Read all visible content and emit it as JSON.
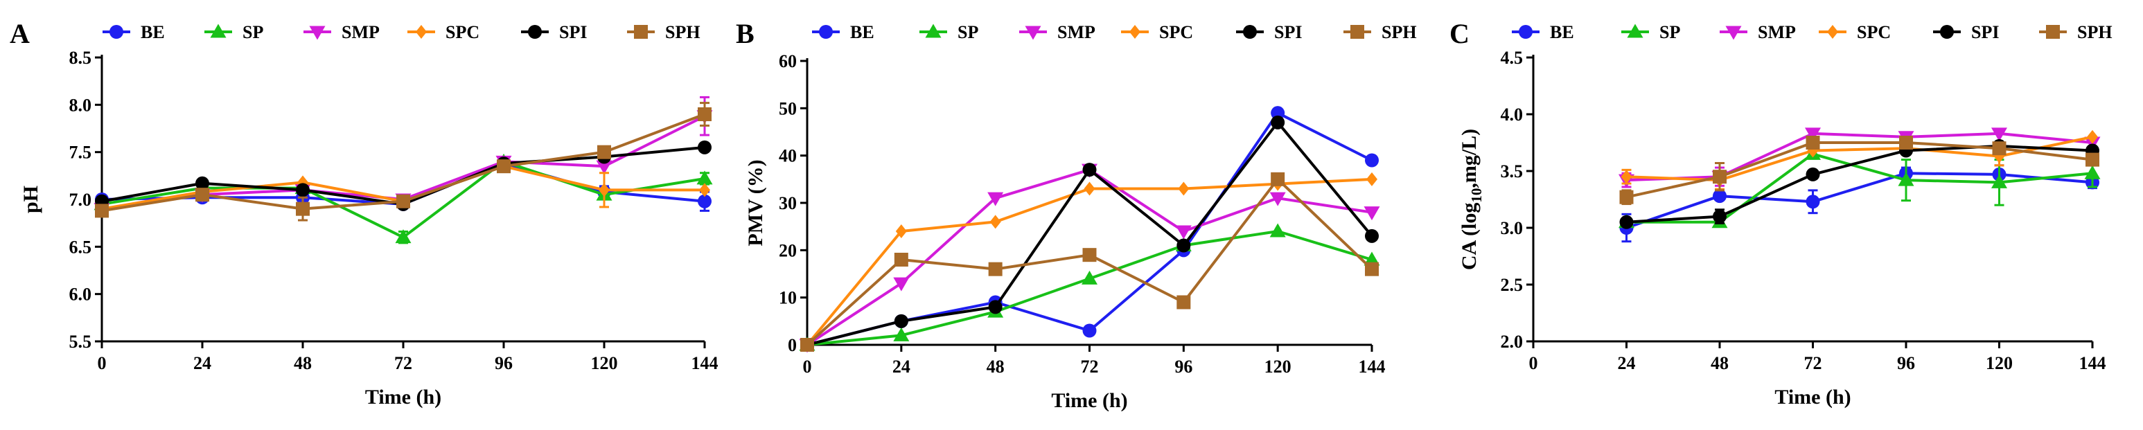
{
  "chart_data": [
    {
      "type": "line",
      "panel_letter": "A",
      "x": [
        0,
        24,
        48,
        72,
        96,
        120,
        144
      ],
      "xlabel": "Time (h)",
      "ylabel": "pH",
      "xlim": [
        0,
        144
      ],
      "ylim": [
        5.5,
        8.5
      ],
      "xticks": [
        0,
        24,
        48,
        72,
        96,
        120,
        144
      ],
      "yticks": [
        5.5,
        6.0,
        6.5,
        7.0,
        7.5,
        8.0,
        8.5
      ],
      "ytick_labels": [
        "5.5",
        "6.0",
        "6.5",
        "7.0",
        "7.5",
        "8.0",
        "8.5"
      ],
      "legend": [
        "BE",
        "SP",
        "SMP",
        "SPC",
        "SPI",
        "SPH"
      ],
      "series": [
        {
          "name": "BE",
          "values": [
            7.0,
            7.02,
            7.02,
            6.95,
            7.38,
            7.08,
            6.98
          ],
          "err": [
            0,
            0,
            0,
            0,
            0,
            0.06,
            0.1
          ]
        },
        {
          "name": "SP",
          "values": [
            6.95,
            7.12,
            7.12,
            6.6,
            7.4,
            7.05,
            7.22
          ],
          "err": [
            0,
            0,
            0,
            0.06,
            0,
            0,
            0.06
          ]
        },
        {
          "name": "SMP",
          "values": [
            6.9,
            7.05,
            7.1,
            7.0,
            7.4,
            7.35,
            7.88
          ],
          "err": [
            0,
            0,
            0,
            0,
            0,
            0,
            0.2
          ]
        },
        {
          "name": "SPC",
          "values": [
            6.9,
            7.08,
            7.18,
            6.98,
            7.35,
            7.1,
            7.1
          ],
          "err": [
            0,
            0,
            0,
            0,
            0,
            0.18,
            0
          ]
        },
        {
          "name": "SPI",
          "values": [
            6.98,
            7.17,
            7.1,
            6.95,
            7.38,
            7.45,
            7.55
          ],
          "err": [
            0,
            0,
            0,
            0,
            0,
            0,
            0
          ]
        },
        {
          "name": "SPH",
          "values": [
            6.88,
            7.05,
            6.9,
            6.98,
            7.35,
            7.5,
            7.9
          ],
          "err": [
            0,
            0,
            0.12,
            0,
            0,
            0,
            0.12
          ]
        }
      ]
    },
    {
      "type": "line",
      "panel_letter": "B",
      "x": [
        0,
        24,
        48,
        72,
        96,
        120,
        144
      ],
      "xlabel": "Time (h)",
      "ylabel": "PMV (%)",
      "xlim": [
        0,
        144
      ],
      "ylim": [
        0,
        60
      ],
      "xticks": [
        0,
        24,
        48,
        72,
        96,
        120,
        144
      ],
      "yticks": [
        0,
        10,
        20,
        30,
        40,
        50,
        60
      ],
      "ytick_labels": [
        "0",
        "10",
        "20",
        "30",
        "40",
        "50",
        "60"
      ],
      "legend": [
        "BE",
        "SP",
        "SMP",
        "SPC",
        "SPI",
        "SPH"
      ],
      "series": [
        {
          "name": "BE",
          "values": [
            0,
            5,
            9,
            3,
            20,
            49,
            39
          ],
          "err": [
            0,
            0,
            0,
            0,
            0,
            0,
            0
          ]
        },
        {
          "name": "SP",
          "values": [
            0,
            2,
            7,
            14,
            21,
            24,
            18
          ],
          "err": [
            0,
            0,
            0,
            0,
            0,
            0,
            0
          ]
        },
        {
          "name": "SMP",
          "values": [
            0,
            13,
            31,
            37,
            24,
            31,
            28
          ],
          "err": [
            0,
            0,
            0,
            0,
            0,
            0,
            0
          ]
        },
        {
          "name": "SPC",
          "values": [
            0,
            24,
            26,
            33,
            33,
            34,
            35
          ],
          "err": [
            0,
            0,
            0,
            0,
            0,
            0,
            0
          ]
        },
        {
          "name": "SPI",
          "values": [
            0,
            5,
            8,
            37,
            21,
            47,
            23
          ],
          "err": [
            0,
            0,
            0,
            0,
            0,
            0,
            0
          ]
        },
        {
          "name": "SPH",
          "values": [
            0,
            18,
            16,
            19,
            9,
            35,
            16
          ],
          "err": [
            0,
            0,
            0,
            0,
            0,
            0,
            0
          ]
        }
      ]
    },
    {
      "type": "line",
      "panel_letter": "C",
      "x": [
        24,
        48,
        72,
        96,
        120,
        144
      ],
      "xlabel": "Time (h)",
      "ylabel_main": "CA (log",
      "ylabel_sub": "10",
      "ylabel_tail": ",mg/L)",
      "xlim": [
        0,
        144
      ],
      "ylim": [
        2.0,
        4.5
      ],
      "xticks": [
        0,
        24,
        48,
        72,
        96,
        120,
        144
      ],
      "yticks": [
        2.0,
        2.5,
        3.0,
        3.5,
        4.0,
        4.5
      ],
      "ytick_labels": [
        "2.0",
        "2.5",
        "3.0",
        "3.5",
        "4.0",
        "4.5"
      ],
      "legend": [
        "BE",
        "SP",
        "SMP",
        "SPC",
        "SPI",
        "SPH"
      ],
      "series": [
        {
          "name": "BE",
          "values": [
            3.0,
            3.28,
            3.23,
            3.48,
            3.47,
            3.4
          ],
          "err": [
            0.12,
            0,
            0.1,
            0.05,
            0.08,
            0.05
          ]
        },
        {
          "name": "SP",
          "values": [
            3.05,
            3.05,
            3.65,
            3.42,
            3.4,
            3.48
          ],
          "err": [
            0,
            0,
            0,
            0.18,
            0.2,
            0.12
          ]
        },
        {
          "name": "SMP",
          "values": [
            3.42,
            3.45,
            3.83,
            3.8,
            3.83,
            3.75
          ],
          "err": [
            0.06,
            0.08,
            0,
            0,
            0,
            0
          ]
        },
        {
          "name": "SPC",
          "values": [
            3.45,
            3.42,
            3.68,
            3.7,
            3.63,
            3.8
          ],
          "err": [
            0.06,
            0.08,
            0,
            0,
            0.08,
            0
          ]
        },
        {
          "name": "SPI",
          "values": [
            3.05,
            3.1,
            3.47,
            3.68,
            3.72,
            3.68
          ],
          "err": [
            0,
            0.06,
            0,
            0,
            0,
            0
          ]
        },
        {
          "name": "SPH",
          "values": [
            3.27,
            3.45,
            3.75,
            3.75,
            3.7,
            3.6
          ],
          "err": [
            0.06,
            0.12,
            0,
            0,
            0,
            0
          ]
        }
      ]
    }
  ],
  "series_styles": {
    "BE": {
      "color": "#1f1ff0",
      "marker": "circle"
    },
    "SP": {
      "color": "#18c018",
      "marker": "triangle-up"
    },
    "SMP": {
      "color": "#d21cd9",
      "marker": "triangle-down"
    },
    "SPC": {
      "color": "#ff8c10",
      "marker": "diamond"
    },
    "SPI": {
      "color": "#000000",
      "marker": "circle"
    },
    "SPH": {
      "color": "#a86a28",
      "marker": "square"
    }
  }
}
